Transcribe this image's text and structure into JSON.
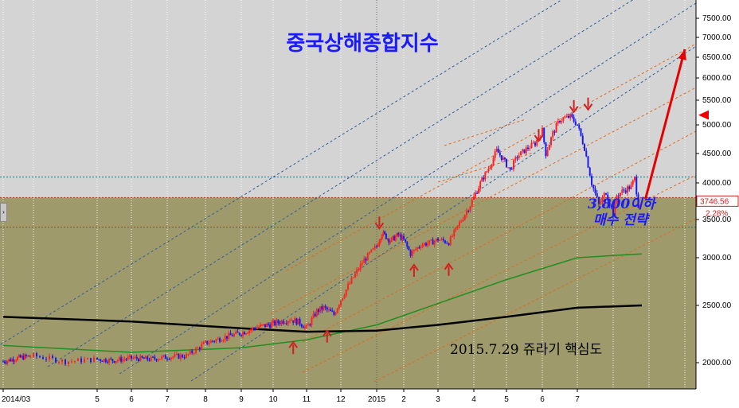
{
  "chart_data": {
    "type": "candlestick",
    "title": "중국상해종합지수",
    "annotations": {
      "strategy_line1": "3,800이하",
      "strategy_line2": "매수 전략",
      "caption": "2015.7.29 쥬라기 핵심도"
    },
    "last_price": "3746.56",
    "last_change": "2.28%",
    "y_ticks": [
      2000,
      2500,
      3000,
      3500,
      4000,
      4500,
      5000,
      5500,
      6000,
      6500,
      7000,
      7500
    ],
    "y_tick_labels": [
      "2000.00",
      "2500.00",
      "3000.00",
      "3500.00",
      "4000.00",
      "4500.00",
      "5000.00",
      "5500.00",
      "6000.00",
      "6500.00",
      "7000.00",
      "7500.00"
    ],
    "x_tick_labels": [
      "2014/03",
      "5",
      "6",
      "7",
      "8",
      "9",
      "10",
      "11",
      "12",
      "2015",
      "2",
      "3",
      "4",
      "5",
      "6",
      "7"
    ],
    "x_tick_months": [
      0,
      2,
      3,
      4,
      5,
      6,
      7,
      8,
      9,
      10,
      11,
      12,
      13,
      14,
      15,
      16
    ],
    "price_path": [
      [
        0,
        2010
      ],
      [
        0.5,
        2040
      ],
      [
        1,
        2060
      ],
      [
        1.5,
        2010
      ],
      [
        2,
        2030
      ],
      [
        2.5,
        2020
      ],
      [
        3,
        2040
      ],
      [
        3.5,
        2030
      ],
      [
        4,
        2050
      ],
      [
        4.5,
        2060
      ],
      [
        5,
        2170
      ],
      [
        5.5,
        2220
      ],
      [
        6,
        2260
      ],
      [
        6.5,
        2310
      ],
      [
        7,
        2340
      ],
      [
        7.5,
        2380
      ],
      [
        7.8,
        2350
      ],
      [
        8.0,
        2300
      ],
      [
        8.3,
        2450
      ],
      [
        8.5,
        2480
      ],
      [
        8.8,
        2420
      ],
      [
        9.2,
        2700
      ],
      [
        9.6,
        2950
      ],
      [
        10.0,
        3150
      ],
      [
        10.2,
        3330
      ],
      [
        10.5,
        3220
      ],
      [
        10.8,
        3300
      ],
      [
        11.0,
        3230
      ],
      [
        11.2,
        3050
      ],
      [
        11.5,
        3170
      ],
      [
        11.8,
        3200
      ],
      [
        12.0,
        3240
      ],
      [
        12.3,
        3200
      ],
      [
        12.6,
        3450
      ],
      [
        12.9,
        3700
      ],
      [
        13.2,
        4000
      ],
      [
        13.5,
        4300
      ],
      [
        13.7,
        4550
      ],
      [
        13.9,
        4400
      ],
      [
        14.1,
        4220
      ],
      [
        14.3,
        4450
      ],
      [
        14.6,
        4600
      ],
      [
        14.8,
        4680
      ],
      [
        15.0,
        4900
      ],
      [
        15.1,
        4500
      ],
      [
        15.3,
        4850
      ],
      [
        15.5,
        5100
      ],
      [
        15.8,
        5170
      ],
      [
        16.0,
        5000
      ],
      [
        16.2,
        4600
      ],
      [
        16.4,
        4000
      ],
      [
        16.6,
        3700
      ],
      [
        16.8,
        3880
      ],
      [
        17.0,
        3570
      ],
      [
        17.1,
        3830
      ],
      [
        17.3,
        3900
      ],
      [
        17.5,
        3950
      ],
      [
        17.6,
        4080
      ],
      [
        17.7,
        3700
      ],
      [
        17.8,
        3746
      ]
    ],
    "ma_slow": [
      [
        0,
        2400
      ],
      [
        3,
        2360
      ],
      [
        6,
        2300
      ],
      [
        8,
        2270
      ],
      [
        10,
        2280
      ],
      [
        12,
        2330
      ],
      [
        14,
        2400
      ],
      [
        16,
        2480
      ],
      [
        17.8,
        2500
      ]
    ],
    "ma_fast": [
      [
        0,
        2150
      ],
      [
        3,
        2090
      ],
      [
        6,
        2130
      ],
      [
        8,
        2200
      ],
      [
        10,
        2330
      ],
      [
        12,
        2520
      ],
      [
        14,
        2770
      ],
      [
        16,
        3000
      ],
      [
        17.8,
        3050
      ]
    ],
    "forecast_arrow": [
      [
        17.9,
        3780
      ],
      [
        20.4,
        6700
      ]
    ],
    "horizontal_levels": [
      4100,
      3400
    ],
    "resistance_band": 3800,
    "marker_down": [
      [
        10.1,
        3330
      ],
      [
        14.9,
        4650
      ],
      [
        15.9,
        5180
      ],
      [
        16.3,
        5230
      ]
    ],
    "marker_up": [
      [
        7.6,
        2200
      ],
      [
        8.6,
        2300
      ],
      [
        11.3,
        2950
      ],
      [
        12.3,
        2960
      ]
    ],
    "ylim": [
      1750,
      7700
    ],
    "xlim": [
      0,
      20.6
    ],
    "colors": {
      "up": "#ff2020",
      "down": "#1a1aee",
      "upper_bg": "#d4d4d4",
      "lower_bg": "#9e9a6c",
      "ma_slow": "#000000",
      "ma_fast": "#1f8f1f",
      "arrow": "#e60000",
      "channel_blue": "#2e5c9a",
      "channel_orange": "#e06a1a",
      "level": "#2e6b8f"
    }
  }
}
